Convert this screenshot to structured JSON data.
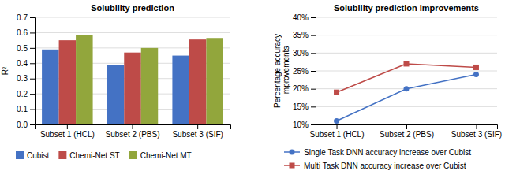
{
  "chart_data": [
    {
      "type": "bar",
      "title": "Solubility prediction",
      "ylabel": "R²",
      "categories": [
        "Subset 1 (HCL)",
        "Subset 2 (PBS)",
        "Subset 3 (SIF)"
      ],
      "series": [
        {
          "name": "Cubist",
          "color": "#4472C4",
          "values": [
            0.49,
            0.39,
            0.45
          ]
        },
        {
          "name": "Chemi-Net ST",
          "color": "#BE4B48",
          "values": [
            0.55,
            0.47,
            0.555
          ]
        },
        {
          "name": "Chemi-Net MT",
          "color": "#92A63C",
          "values": [
            0.585,
            0.5,
            0.565
          ]
        }
      ],
      "ylim": [
        0,
        0.7
      ],
      "yticks": [
        {
          "value": 0,
          "label": "0.0"
        },
        0.1,
        0.2,
        0.3,
        0.4,
        0.5,
        0.6,
        0.7
      ],
      "grid": true,
      "legend": "bottom"
    },
    {
      "type": "line",
      "title": "Solubility prediction improvements",
      "ylabel": "Percentage accuracy\nimprovements",
      "categories": [
        "Subset 1 (HCL)",
        "Subset 2 (PBS)",
        "Subset 3 (SIF)"
      ],
      "series": [
        {
          "name": "Single Task DNN accuracy increase over Cubist",
          "color": "#4472C4",
          "marker": "circle",
          "values": [
            11,
            20,
            24
          ]
        },
        {
          "name": "Multi Task DNN accuracy increase over Cubist",
          "color": "#BE4B48",
          "marker": "square",
          "values": [
            19,
            27,
            26
          ]
        }
      ],
      "ylim": [
        10,
        40
      ],
      "yticks": [
        {
          "value": 10,
          "label": "10%"
        },
        {
          "value": 15,
          "label": "15%"
        },
        {
          "value": 20,
          "label": "20%"
        },
        {
          "value": 25,
          "label": "25%"
        },
        {
          "value": 30,
          "label": "30%"
        },
        {
          "value": 35,
          "label": "35%"
        },
        {
          "value": 40,
          "label": "40%"
        }
      ],
      "grid": true,
      "legend": "bottom"
    }
  ]
}
